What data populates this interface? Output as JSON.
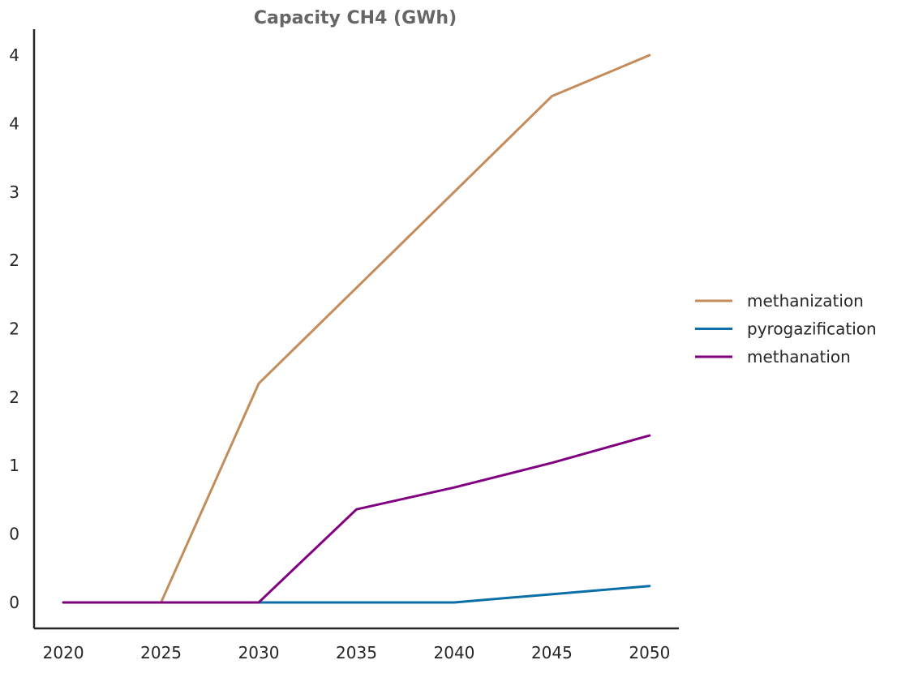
{
  "chart_data": {
    "type": "line",
    "title": "Capacity CH4 (GWh)",
    "xlabel": "",
    "ylabel": "",
    "x": [
      2020,
      2025,
      2030,
      2035,
      2040,
      2045,
      2050
    ],
    "xlim": [
      2018.5,
      2051.5
    ],
    "ylim": [
      -0.19,
      4.19
    ],
    "x_ticks": [
      {
        "value": 2020,
        "label": "2020"
      },
      {
        "value": 2025,
        "label": "2025"
      },
      {
        "value": 2030,
        "label": "2030"
      },
      {
        "value": 2035,
        "label": "2035"
      },
      {
        "value": 2040,
        "label": "2040"
      },
      {
        "value": 2045,
        "label": "2045"
      },
      {
        "value": 2050,
        "label": "2050"
      }
    ],
    "y_ticks": [
      {
        "value": 0.0,
        "label": "0"
      },
      {
        "value": 0.5,
        "label": "0"
      },
      {
        "value": 1.0,
        "label": "1"
      },
      {
        "value": 1.5,
        "label": "2"
      },
      {
        "value": 2.0,
        "label": "2"
      },
      {
        "value": 2.5,
        "label": "2"
      },
      {
        "value": 3.0,
        "label": "3"
      },
      {
        "value": 3.5,
        "label": "4"
      },
      {
        "value": 4.0,
        "label": "4"
      }
    ],
    "grid": false,
    "legend_position": "right",
    "series": [
      {
        "name": "methanization",
        "color": "#c48c5a",
        "values": [
          0,
          0,
          1.6,
          2.3,
          3.0,
          3.7,
          4.0
        ]
      },
      {
        "name": "pyrogazification",
        "color": "#0a6fa8",
        "values": [
          0,
          0,
          0,
          0,
          0,
          0.06,
          0.12
        ]
      },
      {
        "name": "methanation",
        "color": "#800080",
        "values": [
          0,
          0,
          0,
          0.68,
          0.84,
          1.02,
          1.22
        ]
      }
    ]
  }
}
